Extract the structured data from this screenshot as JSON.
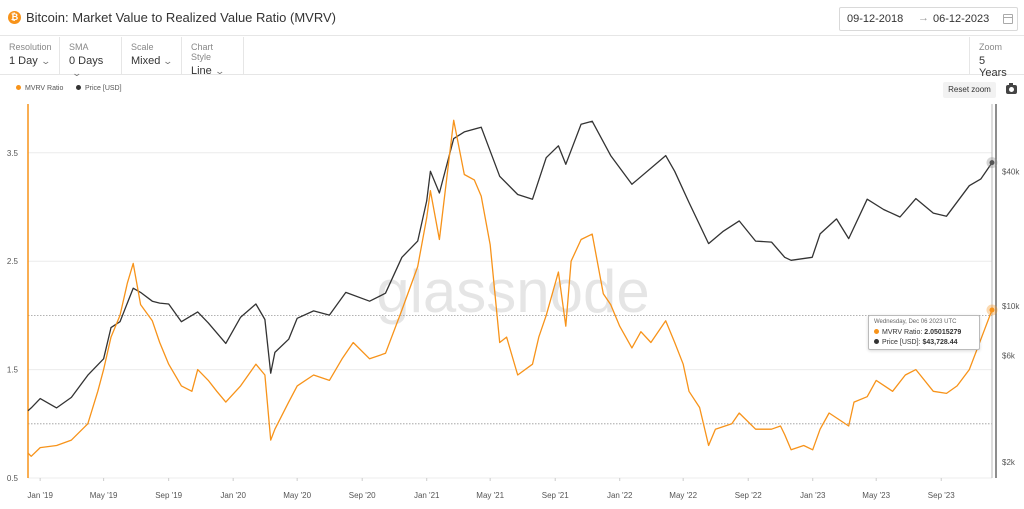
{
  "header": {
    "title": "Bitcoin: Market Value to Realized Value Ratio (MVRV)",
    "asset_icon": "bitcoin-icon",
    "date_start": "09-12-2018",
    "date_arrow": "→",
    "date_end": "06-12-2023"
  },
  "controls": {
    "resolution": {
      "label": "Resolution",
      "value": "1 Day"
    },
    "sma": {
      "label": "SMA",
      "value": "0 Days"
    },
    "scale": {
      "label": "Scale",
      "value": "Mixed"
    },
    "chart_style": {
      "label": "Chart Style",
      "value": "Line"
    },
    "zoom": {
      "label": "Zoom",
      "value": "5 Years"
    }
  },
  "toolbar": {
    "reset_zoom": "Reset zoom",
    "camera": "camera-icon"
  },
  "watermark": "glassnode",
  "tooltip": {
    "date": "Wednesday, Dec 06 2023 UTC",
    "mvrv_label": "MVRV Ratio:",
    "mvrv_value": "2.05015279",
    "price_label": "Price [USD]:",
    "price_value": "$43,728.44"
  },
  "colors": {
    "mvrv": "#f7931a",
    "price": "#333333",
    "accent": "#f7931a"
  },
  "chart_data": {
    "type": "line",
    "title": "Bitcoin: Market Value to Realized Value Ratio (MVRV)",
    "x_tick_labels": [
      "Jan '19",
      "May '19",
      "Sep '19",
      "Jan '20",
      "May '20",
      "Sep '20",
      "Jan '21",
      "May '21",
      "Sep '21",
      "Jan '22",
      "May '22",
      "Sep '22",
      "Jan '23",
      "May '23",
      "Sep '23"
    ],
    "x_tick_dates": [
      "2019-01-01",
      "2019-05-01",
      "2019-09-01",
      "2020-01-01",
      "2020-05-01",
      "2020-09-01",
      "2021-01-01",
      "2021-05-01",
      "2021-09-01",
      "2022-01-01",
      "2022-05-01",
      "2022-09-01",
      "2023-01-01",
      "2023-05-01",
      "2023-09-01"
    ],
    "x_range": [
      "2018-12-09",
      "2023-12-06"
    ],
    "y_left": {
      "ticks": [
        0.5,
        1.5,
        2.5,
        3.5
      ],
      "tick_labels": [
        "0.5",
        "1.5",
        "2.5",
        "3.5"
      ],
      "range": [
        0.5,
        3.95
      ],
      "scale": "linear"
    },
    "y_right": {
      "ticks": [
        2000,
        6000,
        10000,
        40000
      ],
      "tick_labels": [
        "$2k",
        "$6k",
        "$10k",
        "$40k"
      ],
      "range": [
        1700,
        80000
      ],
      "scale": "log"
    },
    "reference_lines": [
      {
        "axis": "left",
        "value": 1
      },
      {
        "axis": "left",
        "value": 2
      }
    ],
    "legend_position": "top-left",
    "series": [
      {
        "name": "MVRV Ratio",
        "axis": "left",
        "color": "#f7931a",
        "x": [
          "2018-12-09",
          "2018-12-15",
          "2019-01-01",
          "2019-02-01",
          "2019-03-01",
          "2019-04-01",
          "2019-04-20",
          "2019-05-01",
          "2019-05-15",
          "2019-06-01",
          "2019-06-15",
          "2019-06-26",
          "2019-07-10",
          "2019-08-01",
          "2019-08-15",
          "2019-09-01",
          "2019-09-25",
          "2019-10-15",
          "2019-10-26",
          "2019-11-15",
          "2019-12-01",
          "2019-12-18",
          "2020-01-15",
          "2020-02-13",
          "2020-03-01",
          "2020-03-12",
          "2020-03-20",
          "2020-04-15",
          "2020-05-01",
          "2020-06-01",
          "2020-07-01",
          "2020-07-25",
          "2020-08-15",
          "2020-09-15",
          "2020-10-15",
          "2020-11-15",
          "2020-12-15",
          "2021-01-01",
          "2021-01-08",
          "2021-01-25",
          "2021-02-21",
          "2021-03-13",
          "2021-04-01",
          "2021-04-14",
          "2021-05-01",
          "2021-05-19",
          "2021-06-01",
          "2021-06-22",
          "2021-07-20",
          "2021-08-01",
          "2021-08-15",
          "2021-09-07",
          "2021-09-21",
          "2021-10-01",
          "2021-10-20",
          "2021-11-10",
          "2021-12-01",
          "2021-12-15",
          "2022-01-01",
          "2022-01-24",
          "2022-02-10",
          "2022-03-01",
          "2022-03-29",
          "2022-04-15",
          "2022-05-01",
          "2022-05-12",
          "2022-06-01",
          "2022-06-18",
          "2022-07-01",
          "2022-08-01",
          "2022-08-15",
          "2022-09-15",
          "2022-10-15",
          "2022-11-01",
          "2022-11-09",
          "2022-11-21",
          "2022-12-15",
          "2023-01-01",
          "2023-01-15",
          "2023-02-01",
          "2023-03-10",
          "2023-03-20",
          "2023-04-14",
          "2023-05-01",
          "2023-06-01",
          "2023-06-25",
          "2023-07-15",
          "2023-08-17",
          "2023-09-11",
          "2023-10-01",
          "2023-10-24",
          "2023-11-15",
          "2023-12-06"
        ],
        "y": [
          0.73,
          0.7,
          0.78,
          0.8,
          0.85,
          1.0,
          1.3,
          1.5,
          1.8,
          2.0,
          2.3,
          2.48,
          2.1,
          1.95,
          1.75,
          1.55,
          1.35,
          1.3,
          1.5,
          1.4,
          1.3,
          1.2,
          1.35,
          1.55,
          1.45,
          0.85,
          0.95,
          1.2,
          1.35,
          1.45,
          1.4,
          1.6,
          1.75,
          1.6,
          1.65,
          2.05,
          2.45,
          2.9,
          3.15,
          2.7,
          3.8,
          3.3,
          3.25,
          3.1,
          2.65,
          1.75,
          1.8,
          1.45,
          1.55,
          1.8,
          2.0,
          2.4,
          1.9,
          2.5,
          2.7,
          2.75,
          2.2,
          2.1,
          1.9,
          1.7,
          1.85,
          1.75,
          1.95,
          1.75,
          1.55,
          1.3,
          1.15,
          0.8,
          0.95,
          1.0,
          1.1,
          0.95,
          0.95,
          0.98,
          0.9,
          0.76,
          0.8,
          0.76,
          0.95,
          1.1,
          0.98,
          1.2,
          1.25,
          1.4,
          1.3,
          1.45,
          1.5,
          1.3,
          1.28,
          1.35,
          1.5,
          1.78,
          2.05
        ]
      },
      {
        "name": "Price [USD]",
        "axis": "right",
        "color": "#333333",
        "x": [
          "2018-12-09",
          "2018-12-15",
          "2019-01-01",
          "2019-02-01",
          "2019-03-01",
          "2019-04-01",
          "2019-05-01",
          "2019-05-15",
          "2019-06-01",
          "2019-06-26",
          "2019-07-10",
          "2019-08-01",
          "2019-08-15",
          "2019-09-01",
          "2019-09-25",
          "2019-10-26",
          "2019-11-15",
          "2019-12-18",
          "2020-01-15",
          "2020-02-13",
          "2020-03-01",
          "2020-03-12",
          "2020-03-20",
          "2020-04-15",
          "2020-05-01",
          "2020-06-01",
          "2020-07-01",
          "2020-08-01",
          "2020-09-15",
          "2020-10-15",
          "2020-11-15",
          "2020-12-15",
          "2021-01-01",
          "2021-01-08",
          "2021-01-25",
          "2021-02-21",
          "2021-03-13",
          "2021-04-14",
          "2021-05-19",
          "2021-06-22",
          "2021-07-20",
          "2021-08-15",
          "2021-09-07",
          "2021-09-21",
          "2021-10-20",
          "2021-11-10",
          "2021-12-15",
          "2022-01-24",
          "2022-03-29",
          "2022-04-15",
          "2022-05-12",
          "2022-06-18",
          "2022-07-15",
          "2022-08-15",
          "2022-09-15",
          "2022-10-15",
          "2022-11-09",
          "2022-11-21",
          "2022-12-31",
          "2023-01-15",
          "2023-02-15",
          "2023-03-10",
          "2023-04-14",
          "2023-05-15",
          "2023-06-15",
          "2023-07-15",
          "2023-08-17",
          "2023-09-11",
          "2023-10-24",
          "2023-11-15",
          "2023-12-06"
        ],
        "y": [
          3400,
          3500,
          3850,
          3500,
          3900,
          4900,
          5800,
          8000,
          8500,
          12000,
          11500,
          10500,
          10300,
          10200,
          8500,
          9400,
          8400,
          6800,
          8900,
          10200,
          8700,
          5000,
          6200,
          7100,
          8800,
          9500,
          9100,
          11500,
          10500,
          11400,
          16500,
          19500,
          29500,
          40000,
          32000,
          56000,
          60000,
          63000,
          38000,
          31500,
          30000,
          46000,
          52000,
          43000,
          65000,
          67000,
          47000,
          35000,
          47000,
          40000,
          29000,
          19000,
          21500,
          24000,
          19500,
          19300,
          16500,
          16000,
          16500,
          21000,
          24500,
          20000,
          30000,
          27000,
          25000,
          30200,
          26000,
          25200,
          34500,
          37000,
          43728
        ]
      }
    ]
  }
}
